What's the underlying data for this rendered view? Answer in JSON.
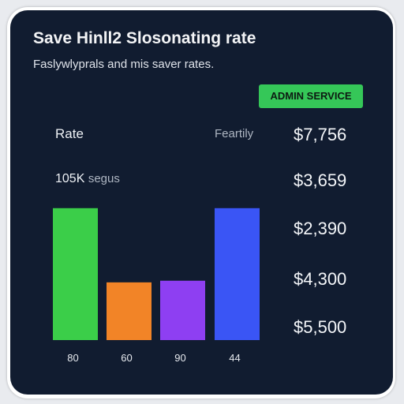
{
  "card": {
    "title": "Save Hinll2 Slosonating rate",
    "subtitle": "Faslywlyprals and mis saver rates.",
    "admin_button": "ADMIN SERVICE",
    "rate_label": "Rate",
    "feartily_label": "Feartily",
    "segus_value": "105K",
    "segus_label": "segus",
    "prices": [
      "$7,756",
      "$3,659",
      "$2,390",
      "$4,300",
      "$5,500"
    ]
  },
  "colors": {
    "background": "#111c30",
    "accent_green": "#35c758"
  },
  "chart_data": {
    "type": "bar",
    "categories": [
      "80",
      "60",
      "90",
      "44"
    ],
    "values": [
      80,
      35,
      36,
      80
    ],
    "ylim": [
      0,
      100
    ],
    "colors": [
      "#3bce49",
      "#f28427",
      "#8e3ff2",
      "#3a55f5"
    ]
  }
}
